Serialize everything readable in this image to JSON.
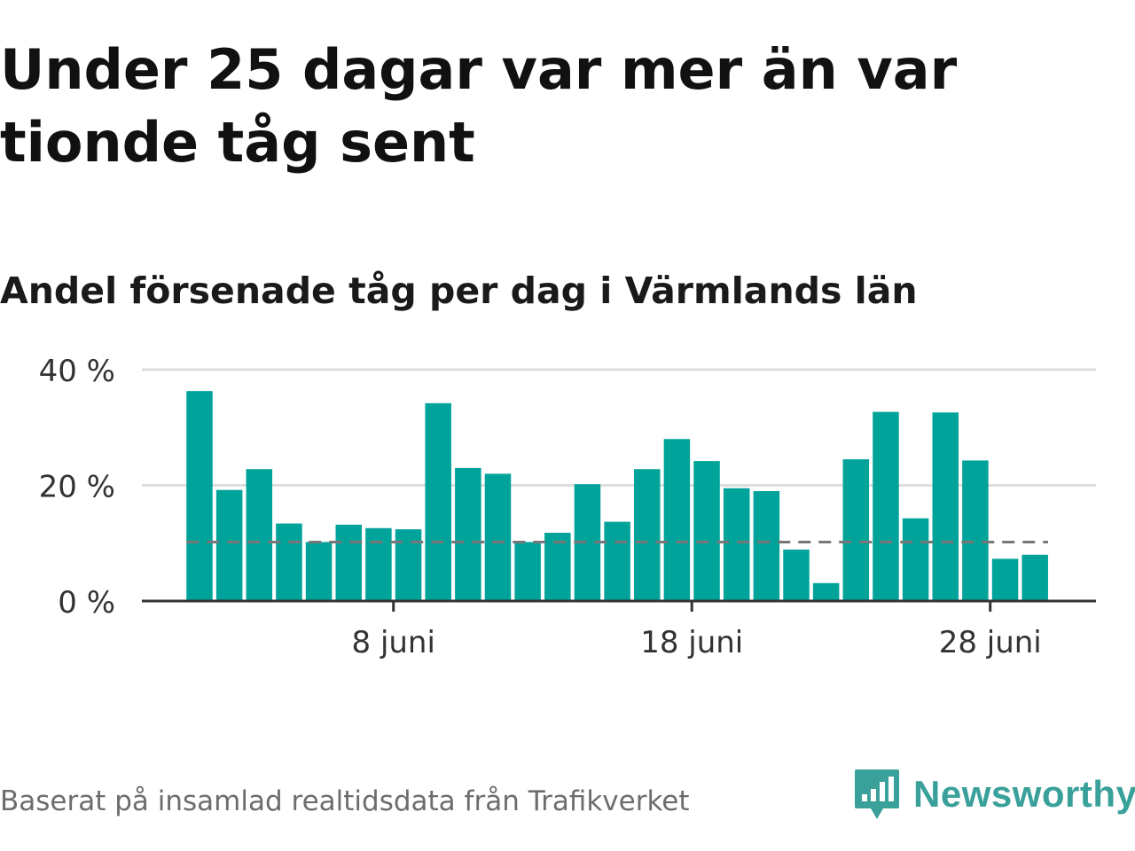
{
  "title": "Under 25 dagar var mer än var tionde tåg sent",
  "subtitle": "Andel försenade tåg per dag i Värmlands län",
  "footer": {
    "note": "Baserat på insamlad realtidsdata från Trafikverket"
  },
  "logo": {
    "text": "Newsworthy",
    "icon": "newsworthy-logo-icon",
    "color": "#3aa09a"
  },
  "colors": {
    "bar": "#00a39a",
    "grid": "#dedede",
    "axis": "#333333",
    "reference_line": "#777777"
  },
  "chart_data": {
    "type": "bar",
    "x_start": "2019-06-01",
    "x_unit": "day",
    "values": [
      36.3,
      19.2,
      22.8,
      13.4,
      10.2,
      13.2,
      12.6,
      12.4,
      34.2,
      23.0,
      22.0,
      10.2,
      11.8,
      20.2,
      13.7,
      22.8,
      28.0,
      24.2,
      19.5,
      19.0,
      8.9,
      3.1,
      24.5,
      32.7,
      14.3,
      32.6,
      24.3,
      7.3,
      8.0
    ],
    "reference_line": 10.2,
    "yticks": [
      0,
      20,
      40
    ],
    "ytick_labels": [
      "0 %",
      "20 %",
      "40 %"
    ],
    "xticks": [
      {
        "day_index": 7,
        "label": "8 juni"
      },
      {
        "day_index": 17,
        "label": "18 juni"
      },
      {
        "day_index": 27,
        "label": "28 juni"
      }
    ],
    "ylim": [
      0,
      40
    ],
    "grid": true,
    "legend": "none"
  }
}
